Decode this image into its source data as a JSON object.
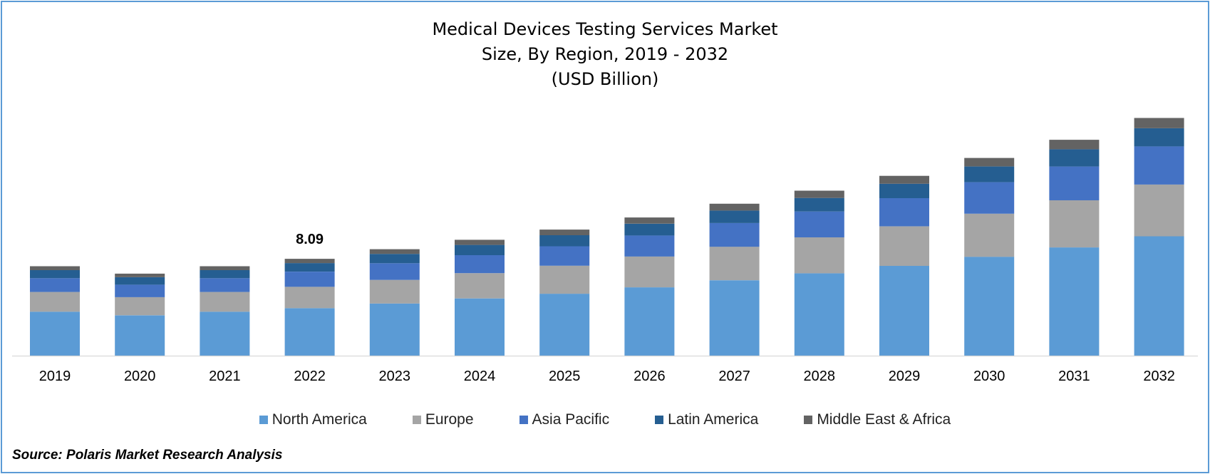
{
  "title": {
    "line1": "Medical Devices Testing Services Market",
    "line2": "Size, By Region, 2019 - 2032",
    "line3": "(USD Billion)"
  },
  "annotation": {
    "label": "8.09",
    "category": "2022"
  },
  "source": "Source: Polaris Market Research Analysis",
  "colors": {
    "North America": "#5b9bd5",
    "Europe": "#a5a5a5",
    "Asia Pacific": "#4472c4",
    "Latin America": "#255e91",
    "Middle East & Africa": "#636363"
  },
  "chart_data": {
    "type": "bar",
    "stacked": true,
    "title": "Medical Devices Testing Services Market Size, By Region, 2019 - 2032 (USD Billion)",
    "categories": [
      "2019",
      "2020",
      "2021",
      "2022",
      "2023",
      "2024",
      "2025",
      "2026",
      "2027",
      "2028",
      "2029",
      "2030",
      "2031",
      "2032"
    ],
    "series": [
      {
        "name": "North America",
        "values": [
          3.67,
          3.37,
          3.67,
          3.97,
          4.36,
          4.78,
          5.17,
          5.71,
          6.3,
          6.88,
          7.5,
          8.26,
          9.04,
          9.97
        ]
      },
      {
        "name": "Europe",
        "values": [
          1.65,
          1.52,
          1.65,
          1.78,
          1.97,
          2.11,
          2.34,
          2.57,
          2.8,
          3.0,
          3.3,
          3.6,
          3.94,
          4.32
        ]
      },
      {
        "name": "Asia Pacific",
        "values": [
          1.15,
          1.04,
          1.15,
          1.27,
          1.39,
          1.5,
          1.63,
          1.76,
          1.98,
          2.16,
          2.36,
          2.63,
          2.82,
          3.19
        ]
      },
      {
        "name": "Latin America",
        "values": [
          0.67,
          0.62,
          0.67,
          0.71,
          0.78,
          0.86,
          0.92,
          0.98,
          1.04,
          1.13,
          1.2,
          1.31,
          1.44,
          1.51
        ]
      },
      {
        "name": "Middle East & Africa",
        "values": [
          0.33,
          0.3,
          0.33,
          0.36,
          0.39,
          0.43,
          0.47,
          0.52,
          0.57,
          0.61,
          0.66,
          0.71,
          0.79,
          0.86
        ]
      }
    ],
    "data_labels": [
      {
        "category": "2022",
        "text": "8.09"
      }
    ],
    "ylim": [
      0,
      20
    ],
    "y_axis_visible": false,
    "grid": false,
    "legend_position": "bottom"
  }
}
